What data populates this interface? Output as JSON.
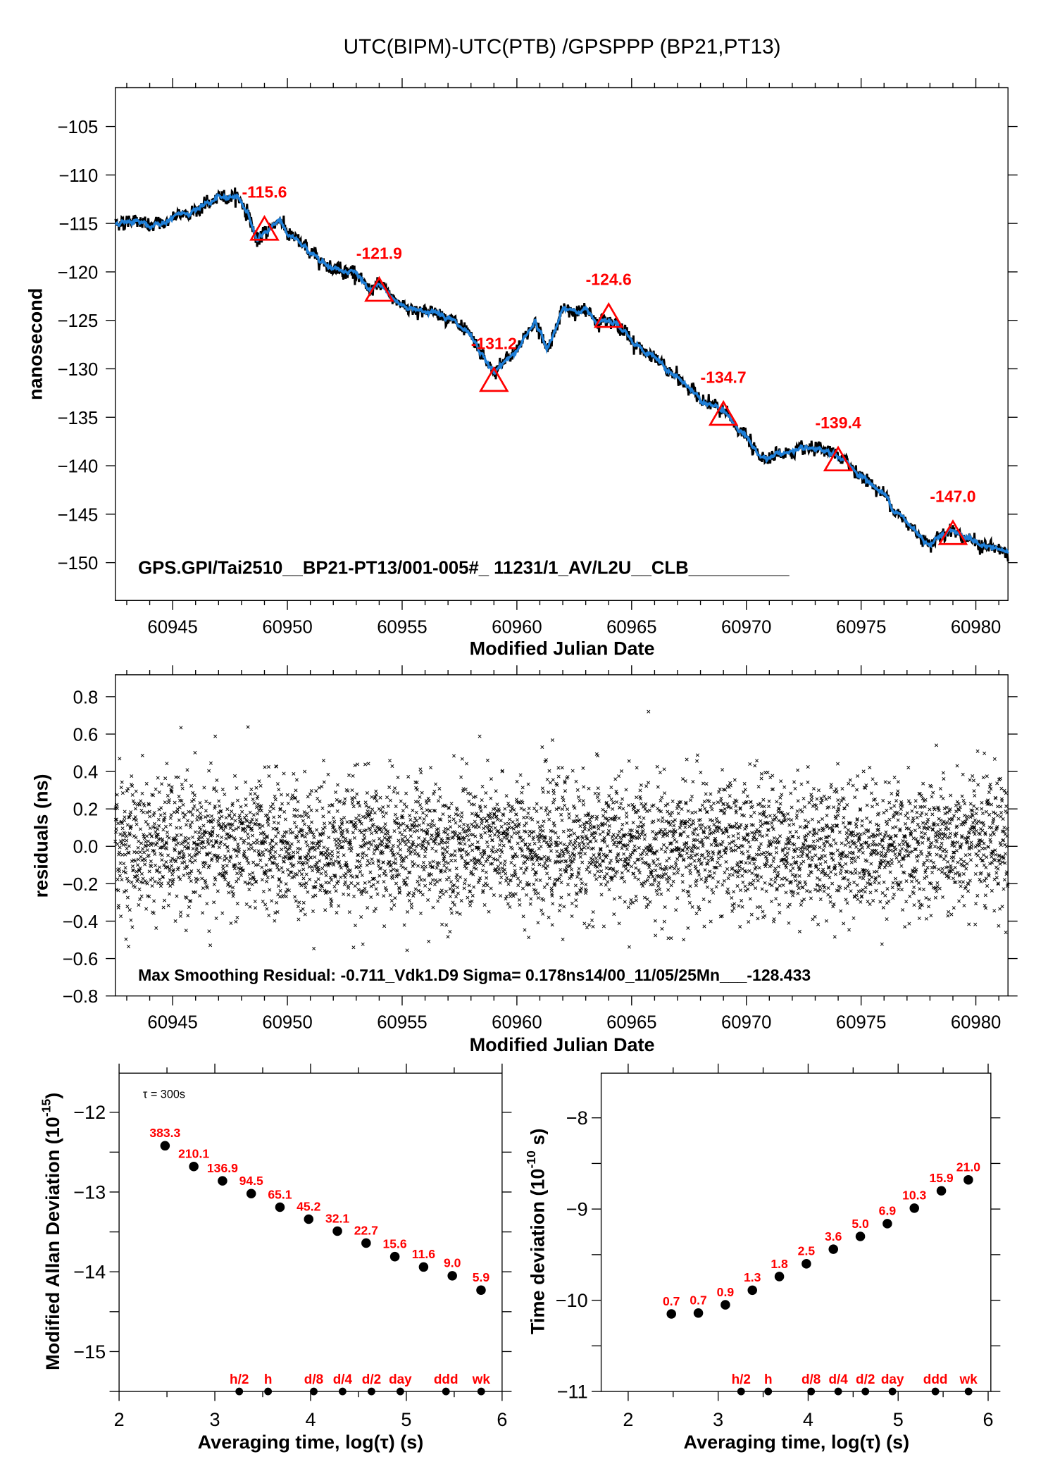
{
  "title": "UTC(BIPM)-UTC(PTB)  /GPSPPP  (BP21,PT13)",
  "chart_data": [
    {
      "type": "line",
      "xlabel": "Modified Julian Date",
      "ylabel": "nanosecond",
      "xlim": [
        60942.5,
        60981.4
      ],
      "ylim": [
        -153.9,
        -101
      ],
      "xticks": [
        60945,
        60950,
        60955,
        60960,
        60965,
        60970,
        60975,
        60980
      ],
      "yticks": [
        -105,
        -110,
        -115,
        -120,
        -125,
        -130,
        -135,
        -140,
        -145,
        -150
      ],
      "series_color": "#1e7fd8",
      "curve": {
        "x": [
          60942.5,
          60943.5,
          60944,
          60945,
          60946,
          60947,
          60947.8,
          60948.3,
          60948.7,
          60949,
          60949.7,
          60950,
          60951,
          60952,
          60953,
          60953.5,
          60954,
          60955,
          60956,
          60957,
          60958,
          60959,
          60960,
          60960.8,
          60961.3,
          60962,
          60963,
          60963.5,
          60964,
          60965,
          60966,
          60967,
          60968,
          60969,
          60970,
          60970.5,
          60971,
          60972,
          60973,
          60974,
          60975,
          60976,
          60977,
          60978,
          60978.5,
          60979,
          60980,
          60981.4
        ],
        "y": [
          -115,
          -114.5,
          -115.5,
          -114.5,
          -113.5,
          -112.5,
          -112,
          -114,
          -117,
          -116,
          -114.5,
          -116,
          -118,
          -119.5,
          -120,
          -122,
          -121.5,
          -123.5,
          -124,
          -124.5,
          -127,
          -130.5,
          -128,
          -125,
          -128,
          -124,
          -124,
          -125,
          -124.5,
          -127,
          -129,
          -131,
          -133,
          -134.5,
          -137,
          -139,
          -139,
          -138.5,
          -138.5,
          -139,
          -141,
          -143,
          -146,
          -148,
          -147,
          -146.5,
          -148,
          -149
        ]
      },
      "markers": {
        "color": "#ff0000",
        "x": [
          60949,
          60954,
          60959,
          60964,
          60969,
          60974,
          60979
        ],
        "y": [
          -115.6,
          -121.9,
          -131.2,
          -124.6,
          -134.7,
          -139.4,
          -147.0
        ],
        "labels": [
          "-115.6",
          "-121.9",
          "-131.2",
          "-124.6",
          "-134.7",
          "-139.4",
          "-147.0"
        ]
      },
      "annotation": "GPS.GPI/Tai2510__BP21-PT13/001-005#_  11231/1_AV/L2U__CLB__________"
    },
    {
      "type": "scatter",
      "xlabel": "Modified Julian Date",
      "ylabel": "residuals (ns)",
      "xlim": [
        60942.5,
        60981.4
      ],
      "ylim": [
        -0.8,
        0.917
      ],
      "xticks": [
        60945,
        60950,
        60955,
        60960,
        60965,
        60970,
        60975,
        60980
      ],
      "yticks": [
        "0.8",
        "0.6",
        "0.4",
        "0.2",
        "0.0",
        "−0.2",
        "−0.4",
        "−0.6",
        "−0.8"
      ],
      "sigma": 0.178,
      "max_residual": -0.711,
      "annotation": "Max Smoothing Residual: -0.711_Vdk1.D9  Sigma= 0.178ns14/00_11/05/25Mn___-128.433"
    },
    {
      "type": "scatter",
      "xlabel": "Averaging time, log(τ) (s)",
      "ylabel": "Modified Allan Deviation (10",
      "ylabel_exp": "-15",
      "ylabel_end": ")",
      "xlim": [
        2,
        6
      ],
      "ylim": [
        -15.5,
        -11.51
      ],
      "xticks": [
        "2",
        "3",
        "4",
        "5",
        "6"
      ],
      "yticks": [
        "−12",
        "−13",
        "−14",
        "−15"
      ],
      "tau_note": "τ = 300s",
      "x": [
        2.48,
        2.78,
        3.08,
        3.38,
        3.68,
        3.98,
        4.28,
        4.58,
        4.88,
        5.18,
        5.48,
        5.78
      ],
      "y": [
        -12.42,
        -12.68,
        -12.86,
        -13.02,
        -13.19,
        -13.34,
        -13.49,
        -13.64,
        -13.81,
        -13.94,
        -14.05,
        -14.23
      ],
      "labels": [
        "383.3",
        "210.1",
        "136.9",
        "94.5",
        "65.1",
        "45.2",
        "32.1",
        "22.7",
        "15.6",
        "11.6",
        "9.0",
        "5.9"
      ],
      "time_marks": {
        "x": [
          3.255,
          3.556,
          4.033,
          4.334,
          4.636,
          4.937,
          5.414,
          5.782
        ],
        "labels": [
          "h/2",
          "h",
          "d/8",
          "d/4",
          "d/2",
          "day",
          "ddd",
          "wk"
        ]
      }
    },
    {
      "type": "scatter",
      "xlabel": "Averaging time, log(τ) (s)",
      "ylabel": "Time deviation (10",
      "ylabel_exp": "-10",
      "ylabel_end": " s)",
      "xlim": [
        1.7,
        6.03
      ],
      "ylim": [
        -11,
        -7.51
      ],
      "xticks": [
        "2",
        "3",
        "4",
        "5",
        "6"
      ],
      "yticks": [
        "−8",
        "−9",
        "−10",
        "−11"
      ],
      "x": [
        2.48,
        2.78,
        3.08,
        3.38,
        3.68,
        3.98,
        4.28,
        4.58,
        4.88,
        5.18,
        5.48,
        5.78
      ],
      "y": [
        -10.15,
        -10.14,
        -10.05,
        -9.89,
        -9.74,
        -9.6,
        -9.44,
        -9.3,
        -9.16,
        -8.99,
        -8.8,
        -8.68
      ],
      "labels": [
        "0.7",
        "0.7",
        "0.9",
        "1.3",
        "1.8",
        "2.5",
        "3.6",
        "5.0",
        "6.9",
        "10.3",
        "15.9",
        "21.0"
      ],
      "time_marks": {
        "x": [
          3.255,
          3.556,
          4.033,
          4.334,
          4.636,
          4.937,
          5.414,
          5.782
        ],
        "labels": [
          "h/2",
          "h",
          "d/8",
          "d/4",
          "d/2",
          "day",
          "ddd",
          "wk"
        ]
      }
    }
  ]
}
